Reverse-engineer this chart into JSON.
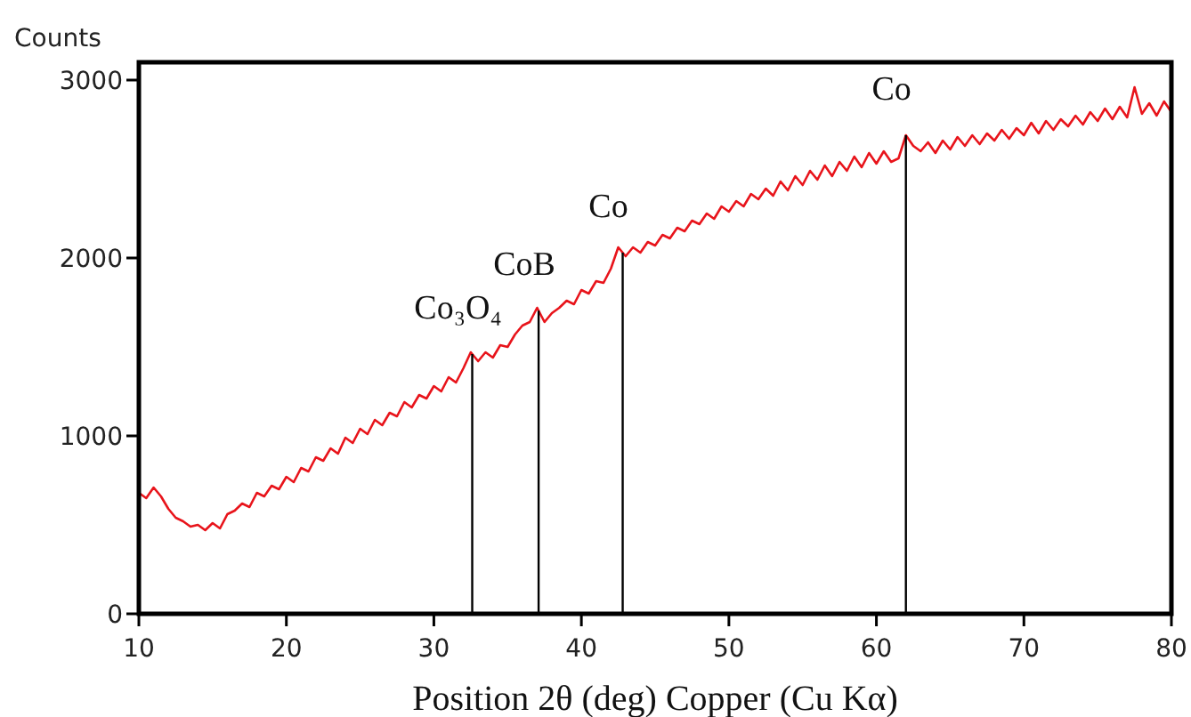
{
  "chart_data": {
    "type": "line",
    "ylabel": "Counts",
    "xlabel": "Position 2θ (deg) Copper (Cu Kα)",
    "xlim": [
      10,
      80
    ],
    "xticks": [
      10,
      20,
      30,
      40,
      50,
      60,
      70,
      80
    ],
    "ylim": [
      0,
      3100
    ],
    "yticks": [
      0,
      1000,
      2000,
      3000
    ],
    "grid": false,
    "marker": "none",
    "line_style": "solid",
    "series": [
      {
        "color": "#e8141b",
        "x": [
          10,
          10.5,
          11,
          11.5,
          12,
          12.5,
          13,
          13.5,
          14,
          14.5,
          15,
          15.5,
          16,
          16.5,
          17,
          17.5,
          18,
          18.5,
          19,
          19.5,
          20,
          20.5,
          21,
          21.5,
          22,
          22.5,
          23,
          23.5,
          24,
          24.5,
          25,
          25.5,
          26,
          26.5,
          27,
          27.5,
          28,
          28.5,
          29,
          29.5,
          30,
          30.5,
          31,
          31.5,
          32,
          32.5,
          33,
          33.5,
          34,
          34.5,
          35,
          35.5,
          36,
          36.5,
          37,
          37.5,
          38,
          38.5,
          39,
          39.5,
          40,
          40.5,
          41,
          41.5,
          42,
          42.5,
          43,
          43.5,
          44,
          44.5,
          45,
          45.5,
          46,
          46.5,
          47,
          47.5,
          48,
          48.5,
          49,
          49.5,
          50,
          50.5,
          51,
          51.5,
          52,
          52.5,
          53,
          53.5,
          54,
          54.5,
          55,
          55.5,
          56,
          56.5,
          57,
          57.5,
          58,
          58.5,
          59,
          59.5,
          60,
          60.5,
          61,
          61.5,
          62,
          62.5,
          63,
          63.5,
          64,
          64.5,
          65,
          65.5,
          66,
          66.5,
          67,
          67.5,
          68,
          68.5,
          69,
          69.5,
          70,
          70.5,
          71,
          71.5,
          72,
          72.5,
          73,
          73.5,
          74,
          74.5,
          75,
          75.5,
          76,
          76.5,
          77,
          77.5,
          78,
          78.5,
          79,
          79.5,
          80
        ],
        "values": [
          680,
          650,
          710,
          660,
          590,
          540,
          520,
          490,
          500,
          470,
          510,
          480,
          560,
          580,
          620,
          600,
          680,
          660,
          720,
          700,
          770,
          740,
          820,
          800,
          880,
          860,
          930,
          900,
          990,
          960,
          1040,
          1010,
          1090,
          1060,
          1130,
          1110,
          1190,
          1160,
          1230,
          1210,
          1280,
          1250,
          1330,
          1300,
          1380,
          1470,
          1420,
          1470,
          1440,
          1510,
          1500,
          1570,
          1620,
          1640,
          1720,
          1640,
          1690,
          1720,
          1760,
          1740,
          1820,
          1800,
          1870,
          1860,
          1940,
          2060,
          2010,
          2060,
          2030,
          2090,
          2070,
          2130,
          2110,
          2170,
          2150,
          2210,
          2190,
          2250,
          2220,
          2290,
          2260,
          2320,
          2290,
          2360,
          2330,
          2390,
          2350,
          2430,
          2380,
          2460,
          2410,
          2490,
          2440,
          2520,
          2460,
          2540,
          2490,
          2570,
          2510,
          2590,
          2530,
          2600,
          2540,
          2560,
          2690,
          2630,
          2600,
          2650,
          2590,
          2660,
          2610,
          2680,
          2630,
          2690,
          2640,
          2700,
          2660,
          2720,
          2670,
          2730,
          2690,
          2760,
          2700,
          2770,
          2720,
          2780,
          2740,
          2800,
          2750,
          2820,
          2770,
          2840,
          2780,
          2850,
          2790,
          2960,
          2810,
          2870,
          2800,
          2880,
          2820
        ]
      }
    ],
    "ref_lines": [
      {
        "axis": "x",
        "value": 32.6,
        "label": "Co₃O₄",
        "color": "#000000"
      },
      {
        "axis": "x",
        "value": 37.1,
        "label": "CoB",
        "color": "#000000"
      },
      {
        "axis": "x",
        "value": 42.8,
        "label": "Co",
        "color": "#000000"
      },
      {
        "axis": "x",
        "value": 62.0,
        "label": "Co",
        "color": "#000000"
      }
    ]
  }
}
